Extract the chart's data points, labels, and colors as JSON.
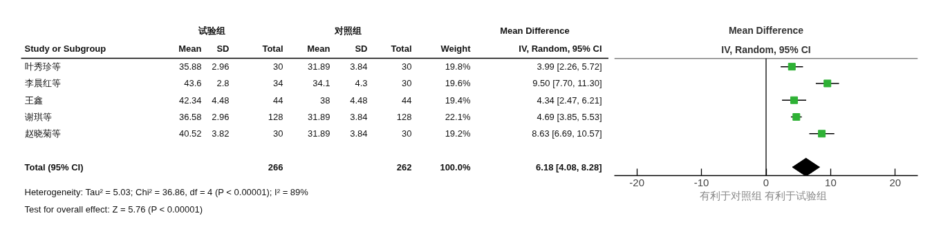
{
  "chart_data": [
    {
      "type": "other",
      "ylabel": "Study or Subgroup",
      "categories": [
        "Mean",
        "SD",
        "Total",
        "Mean",
        "SD",
        "Total",
        "Weight",
        "IV, Random, 95% CI"
      ],
      "y_categories": [
        "叶秀珍等",
        "李晨红等",
        "王鑫",
        "谢琪等",
        "赵晓菊等",
        null,
        "Total (95% CI)"
      ],
      "cell_labels": [
        [
          "35.88",
          "2.96",
          "30",
          "31.89",
          "3.84",
          "30",
          "19.8%",
          "3.99 [2.26, 5.72]"
        ],
        [
          "43.6",
          "2.8",
          "34",
          "34.1",
          "4.3",
          "30",
          "19.6%",
          "9.50 [7.70, 11.30]"
        ],
        [
          "42.34",
          "4.48",
          "44",
          "38",
          "4.48",
          "44",
          "19.4%",
          "4.34 [2.47, 6.21]"
        ],
        [
          "36.58",
          "2.96",
          "128",
          "31.89",
          "3.84",
          "128",
          "22.1%",
          "4.69 [3.85, 5.53]"
        ],
        [
          "40.52",
          "3.82",
          "30",
          "31.89",
          "3.84",
          "30",
          "19.2%",
          "8.63 [6.69, 10.57]"
        ],
        [
          null,
          null,
          null,
          null,
          null,
          null,
          null,
          null
        ],
        [
          null,
          null,
          "266",
          null,
          null,
          "262",
          "100.0%",
          "6.18 [4.08, 8.28]"
        ]
      ],
      "annotations": [
        "试验组",
        "对照组",
        "Mean Difference",
        "Heterogeneity: Tau² = 5.03; Chi² = 36.86, df = 4 (P < 0.00001); I² = 89%",
        "Test for overall effect: Z = 5.76 (P < 0.00001)"
      ]
    },
    {
      "type": "scatter",
      "title": "Mean Difference",
      "subtitle": "IV, Random, 95% CI",
      "xlabel": "有利于对照组   有利于试验组",
      "orientation": "horizontal",
      "categories": [
        null,
        null,
        null,
        null,
        null,
        null,
        null
      ],
      "xlim": [
        -23.5,
        23.5
      ],
      "xticks": [
        -20,
        -10,
        0,
        10,
        20
      ],
      "tick_labels": "x",
      "grid": false,
      "ref_lines": [
        {
          "axis": "x",
          "value": 0,
          "color": "#000000"
        }
      ],
      "series": [
        {
          "marker": "square",
          "color": "#2eb135",
          "values": [
            3.99,
            9.5,
            4.34,
            4.69,
            8.63,
            null,
            null
          ],
          "errors": [
            [
              2.26,
              5.72
            ],
            [
              7.7,
              11.3
            ],
            [
              2.47,
              6.21
            ],
            [
              3.85,
              5.53
            ],
            [
              6.69,
              10.57
            ],
            null,
            null
          ]
        },
        {
          "marker": "diamond",
          "color": "#000000",
          "values": [
            null,
            null,
            null,
            null,
            null,
            null,
            6.18
          ],
          "errors": [
            null,
            null,
            null,
            null,
            null,
            null,
            [
              4.08,
              8.28
            ]
          ]
        }
      ]
    }
  ]
}
